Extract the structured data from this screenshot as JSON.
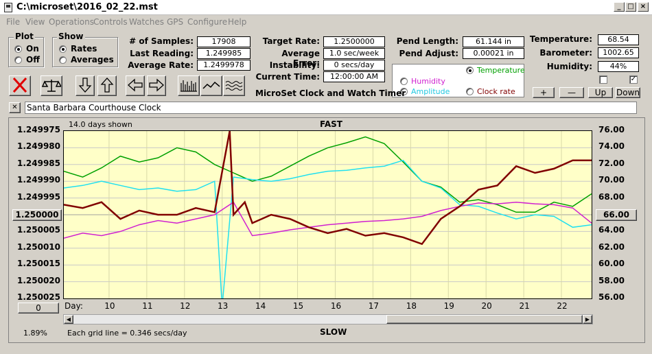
{
  "window": {
    "title": "C:\\microset\\2016_02_22.mst"
  },
  "menu": [
    "File",
    "View",
    "Operations",
    "Controls",
    "Watches",
    "GPS",
    "Configure",
    "Help"
  ],
  "plot_group": {
    "title": "Plot",
    "on": "On",
    "off": "Off"
  },
  "show_group": {
    "title": "Show",
    "rates": "Rates",
    "averages": "Averages"
  },
  "stats": {
    "samples_label": "# of Samples:",
    "samples": "17908",
    "last_label": "Last Reading:",
    "last": "1.249985",
    "avg_label": "Average Rate:",
    "avg": "1.2499978",
    "target_label": "Target Rate:",
    "target": "1.2500000",
    "error_label": "Average Error:",
    "error": "1.0 sec/week",
    "instab_label": "Instability:",
    "instab": "0 secs/day",
    "time_label": "Current Time:",
    "time": "12:00:00 AM",
    "pend_len_label": "Pend Length:",
    "pend_len": "61.144 in",
    "pend_adj_label": "Pend Adjust:",
    "pend_adj": "0.00021 in",
    "temp_label": "Temperature:",
    "temp": "68.54",
    "baro_label": "Barometer:",
    "baro": "1002.65",
    "hum_label": "Humidity:",
    "hum": "44%"
  },
  "app_caption": "MicroSet Clock and Watch Timer",
  "legend": {
    "temperature": "Temperature",
    "humidity": "Humidity",
    "amplitude": "Amplitude",
    "clock_rate": "Clock rate"
  },
  "side_buttons": {
    "plus": "+",
    "minus": "—",
    "up": "Up",
    "down": "Down"
  },
  "clock_name": "Santa Barbara Courthouse Clock",
  "close_x": "✕",
  "chart": {
    "days_shown": "14.0 days shown",
    "top_label": "FAST",
    "bottom_label": "SLOW",
    "center_button": "1.250000",
    "right_button": "66.00",
    "zero_button": "0",
    "day_label": "Day:",
    "percent": "1.89%",
    "grid_note": "Each grid line = 0.346 secs/day"
  },
  "chart_data": {
    "type": "line",
    "x_label": "Day:",
    "x_ticks": [
      10,
      11,
      12,
      13,
      14,
      15,
      16,
      17,
      18,
      19,
      20,
      21,
      22
    ],
    "xlim": [
      8.8,
      22.8
    ],
    "left_axis": {
      "ticks": [
        "1.249975",
        "1.249980",
        "1.249985",
        "1.249990",
        "1.249995",
        "1.250000",
        "1.250005",
        "1.250010",
        "1.250015",
        "1.250020",
        "1.250025"
      ],
      "ylim": [
        1.250025,
        1.249975
      ]
    },
    "right_axis": {
      "ticks": [
        "76.00",
        "74.00",
        "72.00",
        "70.00",
        "68.00",
        "66.00",
        "64.00",
        "62.00",
        "60.00",
        "58.00",
        "56.00"
      ],
      "ylim": [
        56,
        76
      ]
    },
    "series": [
      {
        "name": "Temperature",
        "color": "#00a000",
        "x": [
          8.8,
          9.3,
          9.8,
          10.3,
          10.8,
          11.3,
          11.8,
          12.3,
          12.8,
          13.3,
          13.8,
          14.3,
          14.8,
          15.3,
          15.8,
          16.3,
          16.8,
          17.3,
          17.8,
          18.3,
          18.8,
          19.3,
          19.8,
          20.3,
          20.8,
          21.3,
          21.8,
          22.3,
          22.8
        ],
        "y": [
          71.2,
          70.5,
          71.6,
          73.0,
          72.3,
          72.8,
          74.0,
          73.5,
          72.0,
          71.0,
          70.0,
          70.6,
          71.8,
          73.0,
          74.0,
          74.6,
          75.3,
          74.5,
          72.3,
          70.0,
          69.3,
          67.5,
          67.8,
          67.2,
          66.3,
          66.3,
          67.5,
          67.0,
          68.5
        ]
      },
      {
        "name": "Amplitude",
        "color": "#20e0f0",
        "x": [
          8.8,
          9.3,
          9.8,
          10.3,
          10.8,
          11.3,
          11.8,
          12.3,
          12.8,
          13.0,
          13.3,
          13.8,
          14.3,
          14.8,
          15.3,
          15.8,
          16.3,
          16.8,
          17.3,
          17.8,
          18.3,
          18.8,
          19.3,
          19.8,
          20.3,
          20.8,
          21.3,
          21.8,
          22.3,
          22.8
        ],
        "y": [
          69.2,
          69.5,
          70.0,
          69.5,
          69.0,
          69.2,
          68.8,
          69.0,
          70.0,
          55.0,
          70.5,
          70.2,
          70.0,
          70.3,
          70.8,
          71.2,
          71.3,
          71.6,
          71.8,
          72.5,
          70.0,
          69.2,
          67.2,
          67.0,
          66.2,
          65.5,
          66.0,
          65.8,
          64.5,
          64.8
        ]
      },
      {
        "name": "Humidity",
        "color": "#d020d0",
        "x": [
          8.8,
          9.3,
          9.8,
          10.3,
          10.8,
          11.3,
          11.8,
          12.3,
          12.8,
          13.3,
          13.8,
          14.3,
          14.8,
          15.3,
          15.8,
          16.3,
          16.8,
          17.3,
          17.8,
          18.3,
          18.8,
          19.3,
          19.8,
          20.3,
          20.8,
          21.3,
          21.8,
          22.3,
          22.8
        ],
        "y": [
          63.2,
          63.8,
          63.5,
          64.0,
          64.8,
          65.3,
          65.0,
          65.5,
          66.0,
          67.5,
          63.5,
          63.8,
          64.2,
          64.5,
          64.8,
          65.0,
          65.2,
          65.3,
          65.5,
          65.8,
          66.5,
          67.0,
          67.4,
          67.3,
          67.5,
          67.3,
          67.2,
          66.8,
          65.0
        ]
      },
      {
        "name": "Clock rate",
        "color": "#800000",
        "x": [
          8.8,
          9.3,
          9.8,
          10.3,
          10.8,
          11.3,
          11.8,
          12.3,
          12.8,
          13.2,
          13.3,
          13.6,
          13.8,
          14.3,
          14.8,
          15.3,
          15.8,
          16.3,
          16.8,
          17.3,
          17.8,
          18.3,
          18.8,
          19.3,
          19.8,
          20.3,
          20.8,
          21.3,
          21.8,
          22.3,
          22.8
        ],
        "y": [
          67.2,
          66.8,
          67.5,
          65.5,
          66.5,
          66.0,
          66.0,
          66.8,
          66.3,
          76.0,
          66.0,
          67.5,
          65.0,
          66.0,
          65.5,
          64.5,
          63.8,
          64.3,
          63.5,
          63.8,
          63.3,
          62.5,
          65.5,
          67.0,
          69.0,
          69.5,
          71.8,
          71.0,
          71.5,
          72.5,
          72.5
        ]
      }
    ]
  }
}
